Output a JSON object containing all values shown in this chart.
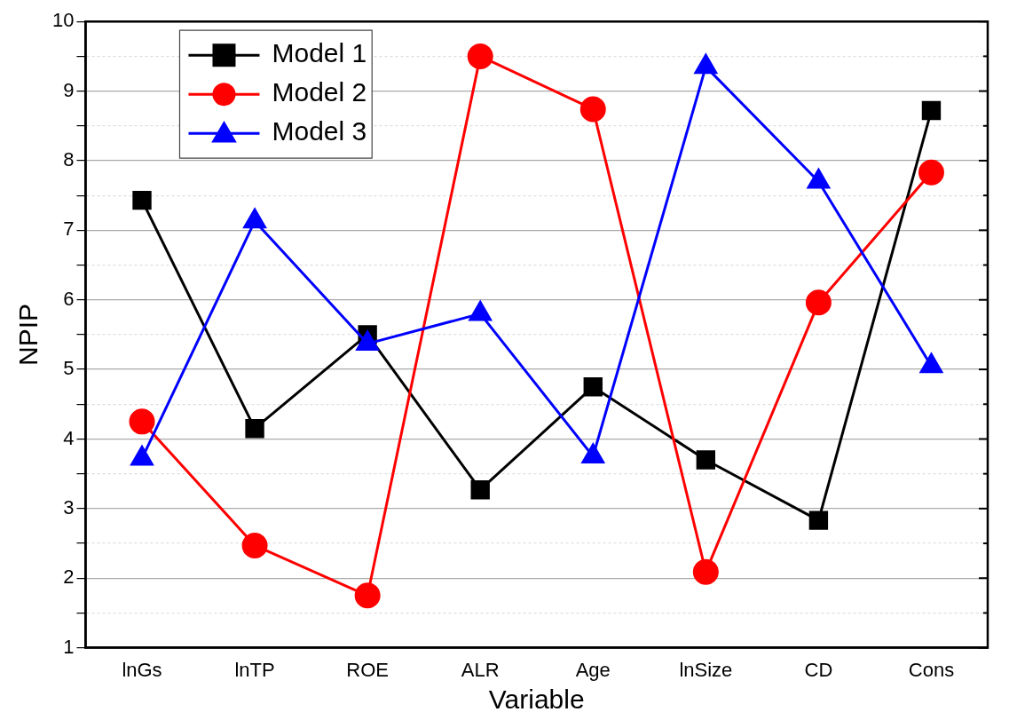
{
  "chart_data": {
    "type": "line",
    "xlabel": "Variable",
    "ylabel": "NPIP",
    "categories": [
      "lnGs",
      "lnTP",
      "ROE",
      "ALR",
      "Age",
      "lnSize",
      "CD",
      "Cons"
    ],
    "series": [
      {
        "name": "Model 1",
        "color": "#000000",
        "marker": "square",
        "values": [
          7.43,
          4.15,
          5.5,
          3.27,
          4.75,
          3.7,
          2.83,
          8.72
        ]
      },
      {
        "name": "Model 2",
        "color": "#ff0000",
        "marker": "circle",
        "values": [
          4.25,
          2.47,
          1.75,
          9.5,
          8.74,
          2.09,
          5.96,
          7.83
        ]
      },
      {
        "name": "Model 3",
        "color": "#0000ff",
        "marker": "triangle",
        "values": [
          3.72,
          7.13,
          5.37,
          5.8,
          3.75,
          9.35,
          7.7,
          5.05
        ]
      }
    ],
    "ylim": [
      1,
      10
    ],
    "yticks": [
      1,
      {
        "value": 1.5,
        "label": null
      },
      2,
      {
        "value": 2.5,
        "label": null
      },
      3,
      {
        "value": 3.5,
        "label": null
      },
      4,
      {
        "value": 4.5,
        "label": null
      },
      5,
      {
        "value": 5.5,
        "label": null
      },
      6,
      {
        "value": 6.5,
        "label": null
      },
      7,
      {
        "value": 7.5,
        "label": null
      },
      8,
      {
        "value": 8.5,
        "label": null
      },
      9,
      {
        "value": 9.5,
        "label": null
      },
      10
    ],
    "grid": "y",
    "legend": "top left",
    "line_style": "solid"
  }
}
